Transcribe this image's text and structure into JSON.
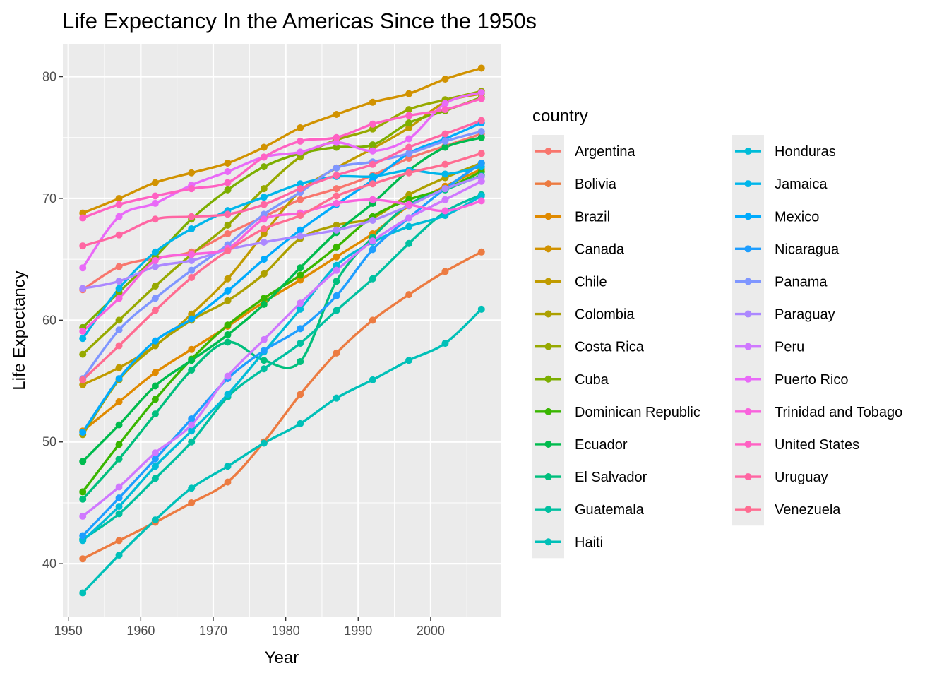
{
  "chart_data": {
    "type": "line",
    "title": "Life Expectancy In the Americas Since the 1950s",
    "xlabel": "Year",
    "ylabel": "Life Expectancy",
    "xlim": [
      1949.25,
      2009.75
    ],
    "ylim": [
      35.6,
      82.7
    ],
    "x_ticks": [
      1950,
      1960,
      1970,
      1980,
      1990,
      2000
    ],
    "y_ticks": [
      40,
      50,
      60,
      70,
      80
    ],
    "grid": true,
    "smoothed": true,
    "legend": {
      "title": "country",
      "placement": "right",
      "columns": 2
    },
    "x": [
      1952,
      1957,
      1962,
      1967,
      1972,
      1977,
      1982,
      1987,
      1992,
      1997,
      2002,
      2007
    ],
    "series": [
      {
        "name": "Argentina",
        "color": "#F8766D",
        "values": [
          62.5,
          64.4,
          65.1,
          65.6,
          67.1,
          68.5,
          69.9,
          70.8,
          71.9,
          73.3,
          74.3,
          75.3
        ]
      },
      {
        "name": "Bolivia",
        "color": "#EC7B41",
        "values": [
          40.4,
          41.9,
          43.4,
          45.0,
          46.7,
          50.0,
          53.9,
          57.3,
          60.0,
          62.1,
          64.0,
          65.6
        ]
      },
      {
        "name": "Brazil",
        "color": "#E08A00",
        "values": [
          50.9,
          53.3,
          55.7,
          57.6,
          59.5,
          61.5,
          63.3,
          65.2,
          67.1,
          69.4,
          71.0,
          72.4
        ]
      },
      {
        "name": "Canada",
        "color": "#D19200",
        "values": [
          68.8,
          70.0,
          71.3,
          72.1,
          72.9,
          74.2,
          75.8,
          76.9,
          77.9,
          78.6,
          79.8,
          80.7
        ]
      },
      {
        "name": "Chile",
        "color": "#C09B00",
        "values": [
          54.7,
          56.1,
          57.9,
          60.5,
          63.4,
          67.1,
          70.6,
          72.5,
          74.1,
          75.8,
          77.9,
          78.6
        ]
      },
      {
        "name": "Colombia",
        "color": "#ADA000",
        "values": [
          50.6,
          55.1,
          57.9,
          60.0,
          61.6,
          63.8,
          66.7,
          67.8,
          68.4,
          70.3,
          71.7,
          72.9
        ]
      },
      {
        "name": "Costa Rica",
        "color": "#96A900",
        "values": [
          57.2,
          60.0,
          62.8,
          65.4,
          67.8,
          70.8,
          73.4,
          74.8,
          75.7,
          77.3,
          78.1,
          78.8
        ]
      },
      {
        "name": "Cuba",
        "color": "#7CAE00",
        "values": [
          59.4,
          62.3,
          65.2,
          68.3,
          70.7,
          72.6,
          73.7,
          74.2,
          74.4,
          76.2,
          77.2,
          78.3
        ]
      },
      {
        "name": "Dominican Republic",
        "color": "#39B600",
        "values": [
          45.9,
          49.8,
          53.5,
          56.8,
          59.6,
          61.8,
          63.7,
          66.0,
          68.5,
          69.9,
          70.8,
          72.2
        ]
      },
      {
        "name": "Ecuador",
        "color": "#00BB4E",
        "values": [
          48.4,
          51.4,
          54.6,
          56.7,
          58.8,
          61.3,
          64.3,
          67.2,
          69.6,
          72.3,
          74.2,
          75.0
        ]
      },
      {
        "name": "El Salvador",
        "color": "#00BF7D",
        "values": [
          45.3,
          48.6,
          52.3,
          55.9,
          58.2,
          56.7,
          56.6,
          63.2,
          66.8,
          69.5,
          70.7,
          71.9
        ]
      },
      {
        "name": "Guatemala",
        "color": "#00C0A0",
        "values": [
          42.0,
          44.1,
          47.0,
          50.0,
          53.7,
          56.0,
          58.1,
          60.8,
          63.4,
          66.3,
          68.9,
          70.3
        ]
      },
      {
        "name": "Haiti",
        "color": "#00C0B8",
        "values": [
          37.6,
          40.7,
          43.6,
          46.2,
          48.0,
          49.9,
          51.5,
          53.6,
          55.1,
          56.7,
          58.1,
          60.9
        ]
      },
      {
        "name": "Honduras",
        "color": "#00BCD8",
        "values": [
          41.9,
          44.7,
          48.0,
          50.9,
          53.9,
          57.4,
          60.9,
          64.5,
          66.4,
          67.7,
          68.6,
          70.2
        ]
      },
      {
        "name": "Jamaica",
        "color": "#00B6EB",
        "values": [
          58.5,
          62.6,
          65.6,
          67.5,
          69.0,
          70.1,
          71.2,
          71.8,
          71.8,
          72.3,
          72.0,
          72.6
        ]
      },
      {
        "name": "Mexico",
        "color": "#00ABFD",
        "values": [
          50.8,
          55.2,
          58.3,
          60.1,
          62.4,
          65.0,
          67.4,
          69.5,
          71.5,
          73.7,
          74.9,
          76.2
        ]
      },
      {
        "name": "Nicaragua",
        "color": "#1E9EFF",
        "values": [
          42.3,
          45.4,
          48.6,
          51.9,
          55.2,
          57.5,
          59.3,
          62.0,
          65.8,
          68.4,
          70.8,
          72.9
        ]
      },
      {
        "name": "Panama",
        "color": "#7F96FF",
        "values": [
          55.2,
          59.2,
          61.8,
          64.1,
          66.2,
          68.7,
          70.5,
          72.5,
          73.0,
          73.7,
          74.7,
          75.5
        ]
      },
      {
        "name": "Paraguay",
        "color": "#AC88FF",
        "values": [
          62.6,
          63.2,
          64.4,
          64.9,
          65.8,
          66.4,
          66.9,
          67.4,
          68.2,
          69.4,
          70.8,
          71.8
        ]
      },
      {
        "name": "Peru",
        "color": "#CF78FF",
        "values": [
          43.9,
          46.3,
          49.1,
          51.4,
          55.4,
          58.4,
          61.4,
          64.1,
          66.5,
          68.4,
          69.9,
          71.4
        ]
      },
      {
        "name": "Puerto Rico",
        "color": "#E96AF8",
        "values": [
          64.3,
          68.5,
          69.6,
          71.1,
          72.2,
          73.4,
          73.8,
          74.6,
          73.9,
          74.9,
          77.8,
          78.7
        ]
      },
      {
        "name": "Trinidad and Tobago",
        "color": "#F962DD",
        "values": [
          59.1,
          61.8,
          64.9,
          65.4,
          65.9,
          68.3,
          68.8,
          69.6,
          69.9,
          69.5,
          68.98,
          69.8
        ]
      },
      {
        "name": "United States",
        "color": "#FF61C3",
        "values": [
          68.4,
          69.5,
          70.2,
          70.8,
          71.3,
          73.4,
          74.7,
          75.0,
          76.1,
          76.8,
          77.3,
          78.2
        ]
      },
      {
        "name": "Uruguay",
        "color": "#FF66A3",
        "values": [
          66.1,
          67.0,
          68.3,
          68.5,
          68.7,
          69.5,
          70.8,
          71.9,
          72.8,
          74.2,
          75.3,
          76.4
        ]
      },
      {
        "name": "Venezuela",
        "color": "#FF6C91",
        "values": [
          55.1,
          57.9,
          60.8,
          63.5,
          65.7,
          67.5,
          68.6,
          70.2,
          71.2,
          72.1,
          72.8,
          73.7
        ]
      }
    ]
  }
}
